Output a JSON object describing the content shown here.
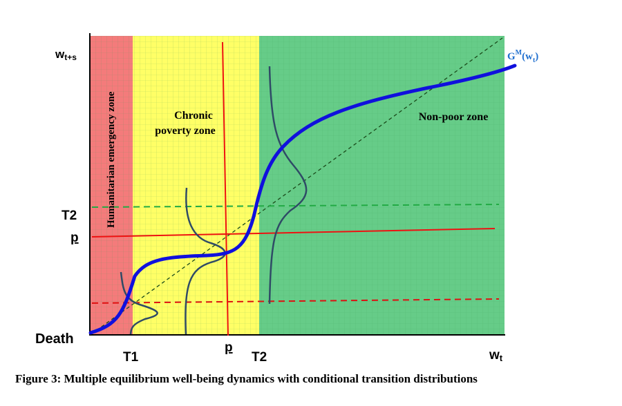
{
  "figure": {
    "y_axis_label": "w",
    "y_axis_label_sub": "t+s",
    "x_axis_label": "w",
    "x_axis_label_sub": "t",
    "origin_label": "Death",
    "x_ticks": {
      "t1": "T1",
      "p": "p",
      "t2": "T2"
    },
    "y_ticks": {
      "t2": "T2",
      "p": "p"
    },
    "curve_label": {
      "main": "G",
      "sup": "M",
      "arg_open": "(w",
      "arg_sub": "t",
      "arg_close": ")"
    },
    "zones": {
      "humanitarian": "Humanitarian emergency zone",
      "chronic_line1": "Chronic",
      "chronic_line2": "poverty zone",
      "nonpoor": "Non-poor zone"
    },
    "colors": {
      "humanitarian_zone": "#f47b7b",
      "chronic_zone": "#ffff66",
      "nonpoor_zone": "#66cc88",
      "grid": "#3a9a55",
      "curve": "#1010dd",
      "curve_highlight": "#1f6fcf",
      "poverty_line": "#ee1111",
      "t2_line": "#22aa44",
      "t1_line": "#dd1111",
      "distribution": "#2f4b66",
      "diagonal": "#1a4a1a"
    }
  },
  "caption": "Figure 3: Multiple equilibrium well-being dynamics with conditional transition distributions"
}
